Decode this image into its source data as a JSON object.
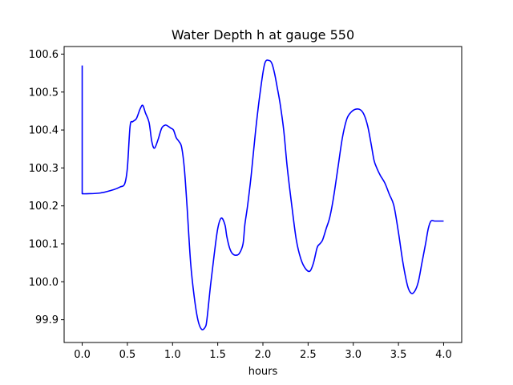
{
  "chart_data": {
    "type": "line",
    "title": "Water Depth h at gauge 550",
    "xlabel": "hours",
    "ylabel": "",
    "xlim": [
      -0.2,
      4.2
    ],
    "ylim": [
      99.84,
      100.62
    ],
    "xticks": [
      0.0,
      0.5,
      1.0,
      1.5,
      2.0,
      2.5,
      3.0,
      3.5,
      4.0
    ],
    "xtick_labels": [
      "0.0",
      "0.5",
      "1.0",
      "1.5",
      "2.0",
      "2.5",
      "3.0",
      "3.5",
      "4.0"
    ],
    "yticks": [
      99.9,
      100.0,
      100.1,
      100.2,
      100.3,
      100.4,
      100.5,
      100.6
    ],
    "ytick_labels": [
      "99.9",
      "100.0",
      "100.1",
      "100.2",
      "100.3",
      "100.4",
      "100.5",
      "100.6"
    ],
    "grid": false,
    "series": [
      {
        "color": "#0000ff",
        "x": [
          0.0,
          0.0,
          0.05,
          0.2,
          0.35,
          0.42,
          0.47,
          0.5,
          0.53,
          0.56,
          0.6,
          0.64,
          0.67,
          0.7,
          0.74,
          0.77,
          0.8,
          0.84,
          0.88,
          0.92,
          0.95,
          0.98,
          1.01,
          1.04,
          1.07,
          1.1,
          1.13,
          1.16,
          1.2,
          1.24,
          1.28,
          1.32,
          1.36,
          1.38,
          1.42,
          1.46,
          1.5,
          1.54,
          1.58,
          1.6,
          1.63,
          1.66,
          1.7,
          1.74,
          1.78,
          1.8,
          1.83,
          1.87,
          1.92,
          1.97,
          2.02,
          2.07,
          2.1,
          2.13,
          2.16,
          2.19,
          2.23,
          2.27,
          2.32,
          2.37,
          2.42,
          2.47,
          2.52,
          2.56,
          2.6,
          2.63,
          2.66,
          2.7,
          2.74,
          2.78,
          2.83,
          2.88,
          2.93,
          2.98,
          3.03,
          3.08,
          3.12,
          3.16,
          3.2,
          3.23,
          3.26,
          3.3,
          3.35,
          3.4,
          3.45,
          3.5,
          3.55,
          3.6,
          3.64,
          3.68,
          3.72,
          3.76,
          3.8,
          3.83,
          3.86,
          3.9,
          3.94,
          3.98,
          4.0
        ],
        "y": [
          100.57,
          100.232,
          100.232,
          100.234,
          100.243,
          100.25,
          100.258,
          100.3,
          100.41,
          100.422,
          100.43,
          100.455,
          100.465,
          100.445,
          100.42,
          100.37,
          100.352,
          100.375,
          100.405,
          100.413,
          100.41,
          100.405,
          100.4,
          100.38,
          100.37,
          100.355,
          100.3,
          100.2,
          100.05,
          99.96,
          99.9,
          99.875,
          99.88,
          99.9,
          99.99,
          100.07,
          100.14,
          100.168,
          100.15,
          100.12,
          100.09,
          100.075,
          100.07,
          100.075,
          100.1,
          100.15,
          100.2,
          100.28,
          100.4,
          100.5,
          100.575,
          100.583,
          100.575,
          100.548,
          100.51,
          100.47,
          100.4,
          100.3,
          100.2,
          100.11,
          100.06,
          100.035,
          100.028,
          100.05,
          100.09,
          100.1,
          100.11,
          100.14,
          100.17,
          100.22,
          100.3,
          100.38,
          100.43,
          100.448,
          100.455,
          100.453,
          100.44,
          100.41,
          100.36,
          100.32,
          100.3,
          100.28,
          100.26,
          100.23,
          100.2,
          100.13,
          100.05,
          99.99,
          99.97,
          99.975,
          100.0,
          100.05,
          100.1,
          100.14,
          100.16,
          100.16,
          100.16,
          100.16,
          100.16
        ]
      }
    ]
  }
}
